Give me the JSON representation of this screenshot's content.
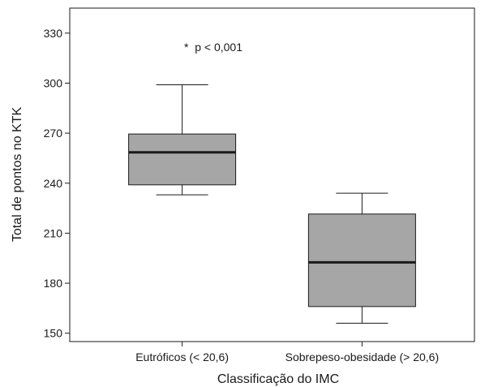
{
  "chart_data": {
    "type": "box",
    "xlabel": "Classificação do IMC",
    "ylabel": "Total de pontos no KTK",
    "ylim": [
      145,
      345
    ],
    "yticks": [
      150,
      180,
      210,
      240,
      270,
      300,
      330
    ],
    "categories": [
      "Eutróficos (< 20,6)",
      "Sobrepeso-obesidade (> 20,6)"
    ],
    "boxes": [
      {
        "category": "Eutróficos (< 20,6)",
        "whisker_low": 233,
        "q1": 239,
        "median": 258.5,
        "q3": 269.5,
        "whisker_high": 299
      },
      {
        "category": "Sobrepeso-obesidade (> 20,6)",
        "whisker_low": 156,
        "q1": 166,
        "median": 192.5,
        "q3": 221.5,
        "whisker_high": 234
      }
    ],
    "annotation": "*  p < 0,001",
    "box_fill": "#a6a6a6",
    "line_color": "#1a1a1a"
  }
}
